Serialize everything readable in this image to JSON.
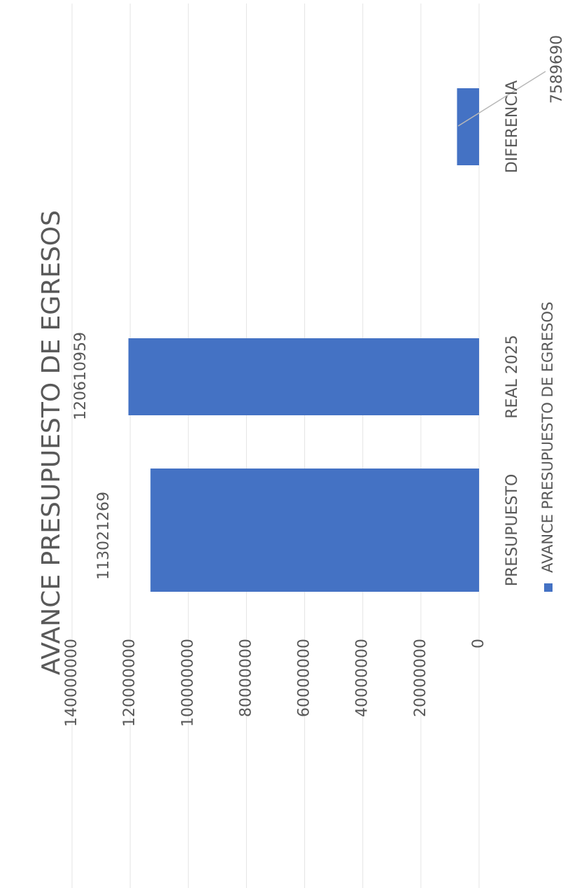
{
  "chart_data": {
    "type": "bar",
    "orientation": "vertical",
    "title": "AVANCE PRESUPUESTO DE EGRESOS",
    "categories": [
      "PRESUPUESTO",
      "REAL 2025",
      "DIFERENCIA"
    ],
    "series": [
      {
        "name": "AVANCE PRESUPUESTO DE EGRESOS",
        "values": [
          113021269,
          120610959,
          7589690
        ],
        "color": "#4472C4"
      }
    ],
    "data_labels": [
      "113021269",
      "120610959",
      "7589690"
    ],
    "ylim": [
      0,
      140000000
    ],
    "y_ticks": [
      "0",
      "20000000",
      "40000000",
      "60000000",
      "80000000",
      "100000000",
      "120000000",
      "140000000"
    ],
    "grid": true,
    "legend_position": "bottom",
    "page_rotation": "rotated 90 degrees counter-clockwise"
  }
}
